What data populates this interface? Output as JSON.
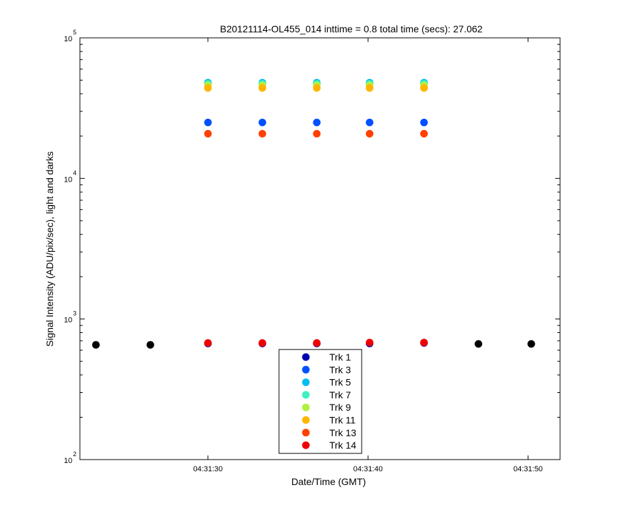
{
  "chart_data": {
    "type": "scatter",
    "title": "B20121114-OL455_014 inttime = 0.8 total time (secs): 27.062",
    "xlabel": "Date/Time (GMT)",
    "ylabel": "Signal Intensity (ADU/pix/sec), light and darks",
    "x_ticks": [
      "04:31:30",
      "04:31:40",
      "04:31:50"
    ],
    "xlim": [
      "04:31:22",
      "04:31:52"
    ],
    "y_scale": "log",
    "ylim": [
      100,
      100000
    ],
    "y_ticks": [
      {
        "base": "10",
        "exp": "2"
      },
      {
        "base": "10",
        "exp": "3"
      },
      {
        "base": "10",
        "exp": "4"
      },
      {
        "base": "10",
        "exp": "5"
      }
    ],
    "grid": false,
    "legend_position": "bottom-center",
    "light_times": [
      "04:31:30.0",
      "04:31:33.4",
      "04:31:36.8",
      "04:31:40.1",
      "04:31:43.5"
    ],
    "series": [
      {
        "name": "Trk 1",
        "color": "#0000b0",
        "values": [
          670,
          670,
          670,
          670,
          675
        ]
      },
      {
        "name": "Trk 3",
        "color": "#0050ff",
        "values": [
          25000,
          25000,
          25000,
          25000,
          25000
        ]
      },
      {
        "name": "Trk 5",
        "color": "#00c0f0",
        "values": [
          48000,
          48000,
          48000,
          48000,
          48000
        ]
      },
      {
        "name": "Trk 7",
        "color": "#40f0c0",
        "values": [
          47000,
          47000,
          47000,
          47000,
          47000
        ]
      },
      {
        "name": "Trk 9",
        "color": "#b0f040",
        "values": [
          46000,
          46000,
          46000,
          46000,
          46000
        ]
      },
      {
        "name": "Trk 11",
        "color": "#ffb400",
        "values": [
          44000,
          44000,
          44000,
          44000,
          44000
        ]
      },
      {
        "name": "Trk 13",
        "color": "#ff4000",
        "values": [
          20800,
          20800,
          20800,
          20800,
          20800
        ]
      },
      {
        "name": "Trk 14",
        "color": "#f00000",
        "values": [
          675,
          675,
          675,
          680,
          680
        ]
      }
    ],
    "dark_points": {
      "color": "#000000",
      "times": [
        "04:31:23.0",
        "04:31:26.4",
        "04:31:46.9",
        "04:31:50.2"
      ],
      "values": [
        655,
        655,
        665,
        665
      ]
    }
  }
}
